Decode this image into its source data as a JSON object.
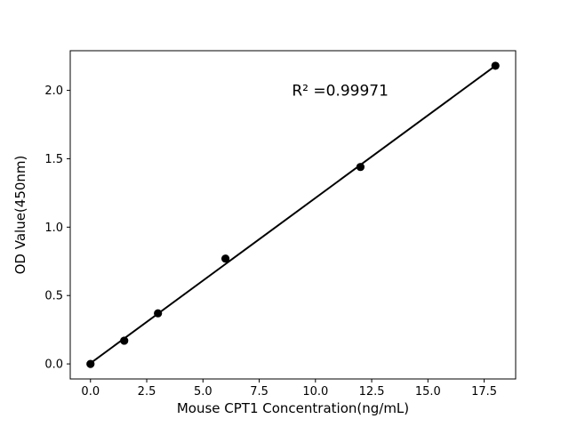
{
  "figure": {
    "background": "#ffffff"
  },
  "chart_data": {
    "type": "scatter",
    "title": "",
    "xlabel": "Mouse CPT1 Concentration(ng/mL)",
    "ylabel": "OD Value(450nm)",
    "x": [
      0,
      1.5,
      3,
      6,
      12,
      18
    ],
    "y": [
      0.0,
      0.17,
      0.37,
      0.77,
      1.44,
      2.18
    ],
    "fit_line": {
      "x": [
        0,
        18
      ],
      "y": [
        0.005,
        2.18
      ]
    },
    "annotation": {
      "text": "R² =0.99971",
      "x": 11.1,
      "y": 1.96
    },
    "xlim": [
      -0.9,
      18.9
    ],
    "ylim": [
      -0.11,
      2.29
    ],
    "xtick_values": [
      0.0,
      2.5,
      5.0,
      7.5,
      10.0,
      12.5,
      15.0,
      17.5
    ],
    "xtick_labels": [
      "0.0",
      "2.5",
      "5.0",
      "7.5",
      "10.0",
      "12.5",
      "15.0",
      "17.5"
    ],
    "ytick_values": [
      0.0,
      0.5,
      1.0,
      1.5,
      2.0
    ],
    "ytick_labels": [
      "0.0",
      "0.5",
      "1.0",
      "1.5",
      "2.0"
    ],
    "grid": false,
    "legend": null,
    "marker_size": 4.6,
    "line_width": 2,
    "colors": {
      "marker": "#000000",
      "line": "#000000",
      "axes": "#000000",
      "text": "#000000",
      "background": "#ffffff"
    }
  }
}
